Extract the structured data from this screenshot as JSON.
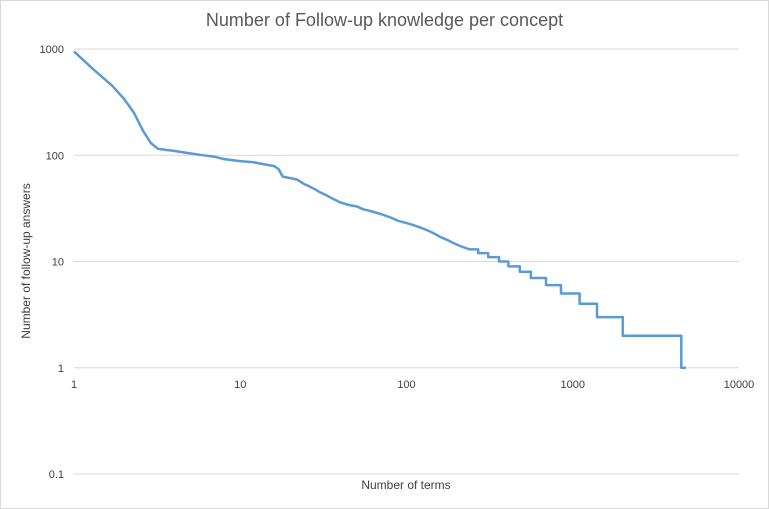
{
  "chart_data": {
    "type": "line",
    "title": "Number of Follow-up knowledge per concept",
    "xlabel": "Number  of terms",
    "ylabel": "Number  of follow-up answers",
    "x_scale": "log",
    "y_scale": "log",
    "xlim": [
      1,
      10000
    ],
    "ylim": [
      0.1,
      1000
    ],
    "x_ticks": [
      "1",
      "10",
      "100",
      "1000",
      "10000"
    ],
    "y_ticks": [
      "0.1",
      "1",
      "10",
      "100",
      "1000"
    ],
    "grid": "horizontal",
    "legend": "none",
    "line_color": "#5b9bd5",
    "series": [
      {
        "x": [
          1,
          1.3,
          1.7,
          2,
          2.3,
          2.6,
          2.9,
          3.2,
          3.6,
          4,
          5,
          6,
          7,
          8,
          10,
          12,
          14,
          16,
          17,
          18,
          20,
          22,
          24,
          26,
          28,
          30,
          33,
          36,
          40,
          45,
          50,
          55,
          60,
          70,
          80,
          90,
          100,
          110,
          120,
          130,
          140,
          150,
          160,
          175,
          190,
          210,
          240,
          270,
          310,
          360,
          410,
          480,
          560,
          690,
          850,
          1100,
          1400,
          2000,
          4500,
          4600
        ],
        "y": [
          950,
          650,
          450,
          340,
          250,
          170,
          130,
          115,
          112,
          110,
          104,
          100,
          97,
          92,
          88,
          86,
          82,
          79,
          74,
          63,
          61,
          59,
          54,
          51,
          48,
          45,
          42,
          39,
          36,
          34,
          33,
          31,
          30,
          28,
          26,
          24,
          23,
          22,
          21,
          20,
          19,
          18,
          17,
          16,
          15,
          14,
          13,
          12,
          11,
          10,
          9,
          8,
          7,
          6,
          5,
          4,
          3,
          2,
          1,
          1
        ]
      }
    ]
  }
}
